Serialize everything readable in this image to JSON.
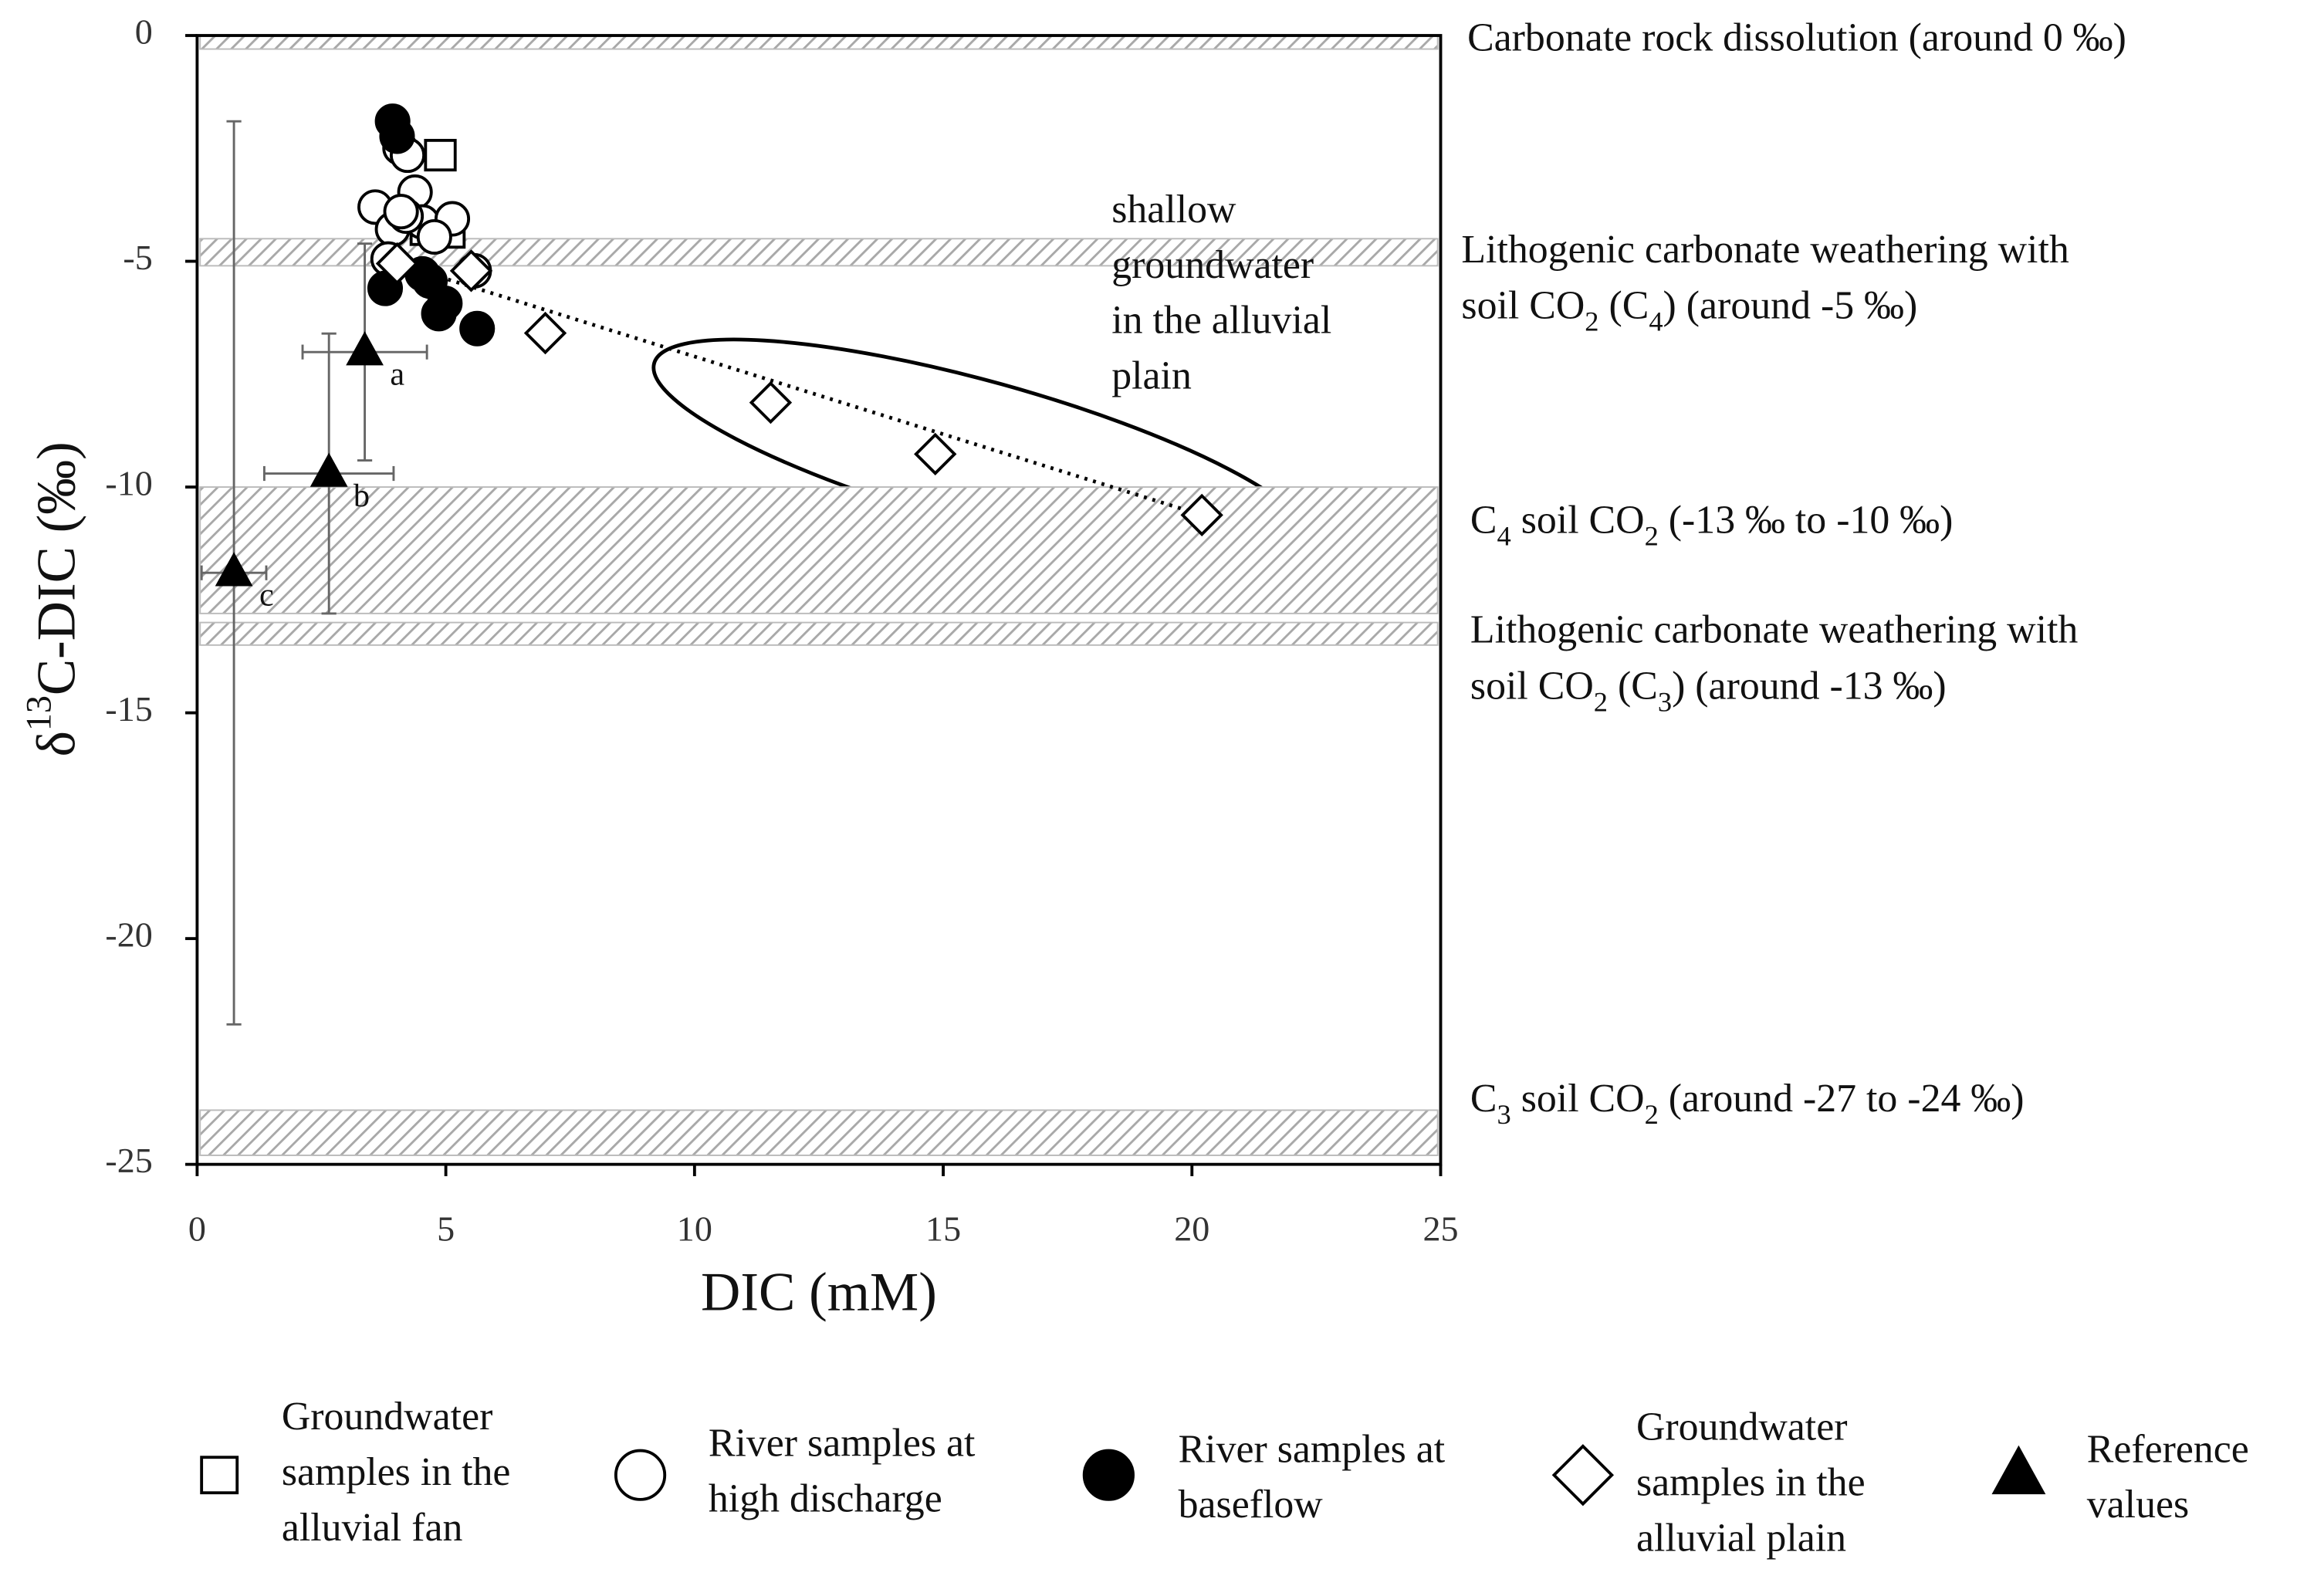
{
  "chart_data": {
    "type": "scatter",
    "x_label": "DIC (mM)",
    "y_label": [
      "δ",
      "13",
      "C-DIC (‰)"
    ],
    "xlim": [
      0,
      25
    ],
    "xticks": [
      0,
      5,
      10,
      15,
      20,
      25
    ],
    "ylim": [
      -25,
      0
    ],
    "yticks": [
      0,
      -5,
      -10,
      -15,
      -20,
      -25
    ],
    "series": [
      {
        "name": [
          "Groundwater",
          "samples in the",
          "alluvial fan"
        ],
        "marker": "square",
        "color": "#000000",
        "fill": "#ffffff",
        "x": [
          4.89,
          5.07,
          4.6
        ],
        "values": [
          -2.65,
          -4.36,
          -4.3
        ]
      },
      {
        "name": [
          "River samples at",
          "high discharge"
        ],
        "marker": "circle",
        "color": "#000000",
        "fill": "#ffffff",
        "x": [
          3.58,
          4.08,
          4.23,
          4.38,
          3.93,
          4.53,
          5.13,
          5.57,
          3.84,
          4.77,
          4.2,
          4.1
        ],
        "values": [
          -3.8,
          -2.49,
          -2.65,
          -3.47,
          -4.29,
          -4.13,
          -4.06,
          -5.21,
          -4.95,
          -4.46,
          -4.0,
          -3.9
        ]
      },
      {
        "name": [
          "River samples at",
          "baseflow"
        ],
        "marker": "circle",
        "color": "#000000",
        "fill": "#000000",
        "x": [
          3.93,
          4.02,
          3.78,
          4.68,
          4.98,
          4.86,
          5.63,
          4.53
        ],
        "values": [
          -1.9,
          -2.23,
          -5.6,
          -5.44,
          -5.93,
          -6.16,
          -6.49,
          -5.28
        ]
      },
      {
        "name": [
          "Groundwater",
          "samples in the",
          "alluvial plain"
        ],
        "marker": "diamond",
        "color": "#000000",
        "fill": "#ffffff",
        "x": [
          4.02,
          5.51,
          7.0,
          11.53,
          14.84,
          20.2
        ],
        "values": [
          -5.05,
          -5.21,
          -6.59,
          -8.13,
          -9.27,
          -10.62
        ]
      },
      {
        "name": [
          "Reference",
          "values"
        ],
        "marker": "triangle",
        "color": "#000000",
        "fill": "#000000",
        "x": [
          3.37,
          2.65,
          0.74
        ],
        "values": [
          -7.01,
          -9.7,
          -11.9
        ],
        "x_error": [
          1.25,
          1.3,
          0.65
        ],
        "y_error": [
          2.4,
          3.1,
          10.0
        ],
        "point_labels": [
          "a",
          "b",
          "c"
        ]
      }
    ],
    "bands": [
      {
        "range": [
          0,
          -0.3
        ],
        "label": [
          [
            "Carbonate rock dissolution (around 0 ‰)"
          ]
        ]
      },
      {
        "range": [
          -4.5,
          -5.1
        ],
        "label": [
          [
            "Lithogenic carbonate weathering with"
          ],
          [
            "soil CO",
            "2",
            "  (C",
            "4",
            ") (around -5 ‰)"
          ]
        ]
      },
      {
        "range": [
          -10,
          -12.8
        ],
        "label": [
          [
            "C",
            "4",
            " soil CO",
            "2",
            " (-13 ‰ to -10 ‰)"
          ]
        ]
      },
      {
        "range": [
          -13,
          -13.5
        ],
        "label": [
          [
            "Lithogenic carbonate weathering with"
          ],
          [
            "soil CO",
            "2",
            "  (C",
            "3",
            ") (around -13 ‰)"
          ]
        ]
      },
      {
        "range": [
          -23.8,
          -24.8
        ],
        "label": [
          [
            "C",
            "3",
            " soil CO",
            "2",
            " (around -27 to -24 ‰)"
          ]
        ]
      }
    ],
    "annotation": [
      "shallow",
      "groundwater",
      "in the alluvial",
      "plain"
    ]
  }
}
